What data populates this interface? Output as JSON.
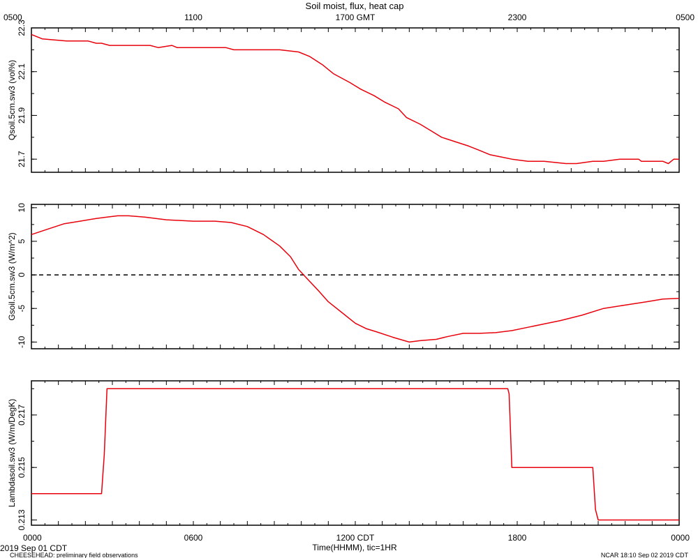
{
  "title": "Soil moist, flux, heat cap",
  "top_axis": {
    "ticks": [
      "0500",
      "1100",
      "1700 GMT",
      "2300",
      "0500"
    ]
  },
  "bottom_axis": {
    "ticks": [
      "0000",
      "0600",
      "1200 CDT",
      "1800",
      "0000"
    ],
    "label": "Time(HHMM), tic=1HR"
  },
  "footer": {
    "date": "2019 Sep 01 CDT",
    "project": "CHEESEHEAD: preliminary field observations",
    "stamp": "NCAR 18:10 Sep 02 2019 CDT"
  },
  "colors": {
    "series": "#e8000b",
    "axes": "#000000"
  },
  "chart_data": [
    {
      "type": "line",
      "ylabel": "Qsoil.5cm.sw3 (vol%)",
      "xlim": [
        0,
        24
      ],
      "ylim": [
        21.64,
        22.3
      ],
      "yticks": [
        21.7,
        21.9,
        22.1,
        22.3
      ],
      "ytick_labels": [
        "21.7",
        "21.9",
        "22.1",
        "22.3"
      ],
      "series": [
        {
          "x": [
            0,
            0.4,
            1.3,
            2.1,
            2.4,
            2.6,
            2.9,
            4.4,
            4.7,
            5.2,
            5.4,
            7.2,
            7.5,
            8.4,
            9.2,
            9.9,
            10.3,
            10.8,
            11.2,
            11.8,
            12.2,
            12.7,
            13.1,
            13.6,
            13.9,
            14.4,
            14.8,
            15.2,
            15.7,
            16.2,
            16.6,
            17.0,
            17.4,
            17.8,
            18.4,
            19.0,
            19.8,
            20.2,
            20.8,
            21.2,
            21.8,
            22.3,
            22.5,
            22.6,
            23.4,
            23.6,
            23.8,
            24
          ],
          "y": [
            22.27,
            22.25,
            22.24,
            22.24,
            22.23,
            22.23,
            22.22,
            22.22,
            22.21,
            22.22,
            22.21,
            22.21,
            22.2,
            22.2,
            22.2,
            22.19,
            22.17,
            22.13,
            22.09,
            22.05,
            22.02,
            21.99,
            21.96,
            21.93,
            21.89,
            21.86,
            21.83,
            21.8,
            21.78,
            21.76,
            21.74,
            21.72,
            21.71,
            21.7,
            21.69,
            21.69,
            21.68,
            21.68,
            21.69,
            21.69,
            21.7,
            21.7,
            21.7,
            21.69,
            21.69,
            21.68,
            21.7,
            21.7
          ],
          "color": "#e8000b"
        }
      ]
    },
    {
      "type": "line",
      "ylabel": "Gsoil.5cm.sw3 (W/m^2)",
      "xlim": [
        0,
        24
      ],
      "ylim": [
        -11,
        10.5
      ],
      "yticks": [
        -10,
        -5,
        0,
        5,
        10
      ],
      "ytick_labels": [
        "-10",
        "-5",
        "0",
        "5",
        "10"
      ],
      "reference_line": 0,
      "series": [
        {
          "x": [
            0,
            0.6,
            1.2,
            1.8,
            2.4,
            2.8,
            3.2,
            3.6,
            4.2,
            5.0,
            6.0,
            6.8,
            7.4,
            8.0,
            8.6,
            9.2,
            9.6,
            9.9,
            10.2,
            10.6,
            11.0,
            11.5,
            12.0,
            12.4,
            12.8,
            13.4,
            14.0,
            14.4,
            15.0,
            15.4,
            16.0,
            16.6,
            17.2,
            17.8,
            18.4,
            19.0,
            19.6,
            20.4,
            21.2,
            22.0,
            22.8,
            23.4,
            24
          ],
          "y": [
            6.0,
            6.8,
            7.6,
            8.0,
            8.4,
            8.6,
            8.8,
            8.8,
            8.6,
            8.2,
            8.0,
            8.0,
            7.8,
            7.2,
            6.0,
            4.3,
            2.7,
            0.8,
            -0.5,
            -2.2,
            -4.0,
            -5.6,
            -7.2,
            -8.0,
            -8.5,
            -9.3,
            -10.0,
            -9.8,
            -9.6,
            -9.2,
            -8.7,
            -8.7,
            -8.6,
            -8.3,
            -7.8,
            -7.3,
            -6.8,
            -6.0,
            -5.0,
            -4.5,
            -4.0,
            -3.6,
            -3.5
          ],
          "color": "#e8000b"
        }
      ]
    },
    {
      "type": "line",
      "ylabel": "Lambdasoil.sw3 (W/m/DegK)",
      "xlim": [
        0,
        24
      ],
      "ylim": [
        0.2128,
        0.2183
      ],
      "yticks": [
        0.213,
        0.215,
        0.217
      ],
      "ytick_labels": [
        "0.213",
        "0.215",
        "0.217"
      ],
      "series": [
        {
          "x": [
            0,
            2.6,
            2.7,
            2.8,
            17.65,
            17.7,
            17.8,
            20.8,
            20.9,
            21.0,
            24
          ],
          "y": [
            0.214,
            0.214,
            0.2155,
            0.218,
            0.218,
            0.2178,
            0.215,
            0.215,
            0.2134,
            0.213,
            0.213
          ],
          "color": "#e8000b"
        }
      ]
    }
  ]
}
